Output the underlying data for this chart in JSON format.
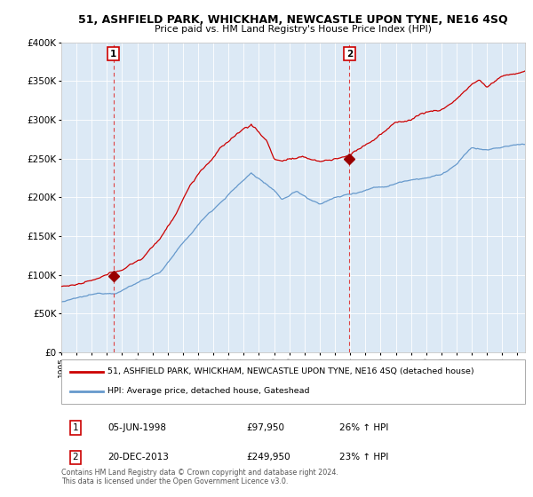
{
  "title": "51, ASHFIELD PARK, WHICKHAM, NEWCASTLE UPON TYNE, NE16 4SQ",
  "subtitle": "Price paid vs. HM Land Registry's House Price Index (HPI)",
  "ylim": [
    0,
    400000
  ],
  "yticks": [
    0,
    50000,
    100000,
    150000,
    200000,
    250000,
    300000,
    350000,
    400000
  ],
  "ytick_labels": [
    "£0",
    "£50K",
    "£100K",
    "£150K",
    "£200K",
    "£250K",
    "£300K",
    "£350K",
    "£400K"
  ],
  "xlim_start": 1995.0,
  "xlim_end": 2025.5,
  "plot_bg_color": "#dce9f5",
  "red_line_color": "#cc0000",
  "blue_line_color": "#6699cc",
  "marker_color": "#990000",
  "sale1_x": 1998.42,
  "sale1_y": 97950,
  "sale1_label": "1",
  "sale2_x": 2013.96,
  "sale2_y": 249950,
  "sale2_label": "2",
  "vline_color": "#dd4444",
  "legend_line1": "51, ASHFIELD PARK, WHICKHAM, NEWCASTLE UPON TYNE, NE16 4SQ (detached house)",
  "legend_line2": "HPI: Average price, detached house, Gateshead",
  "table_row1": [
    "1",
    "05-JUN-1998",
    "£97,950",
    "26% ↑ HPI"
  ],
  "table_row2": [
    "2",
    "20-DEC-2013",
    "£249,950",
    "23% ↑ HPI"
  ],
  "footer": "Contains HM Land Registry data © Crown copyright and database right 2024.\nThis data is licensed under the Open Government Licence v3.0."
}
